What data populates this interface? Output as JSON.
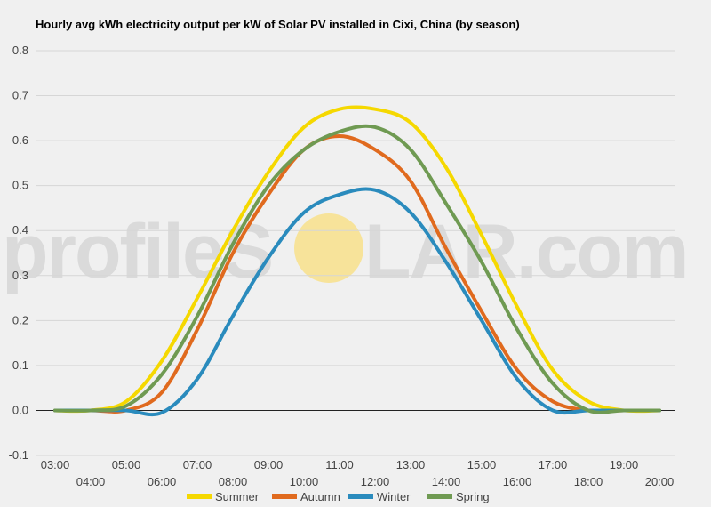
{
  "title": "Hourly avg kWh electricity output per kW of Solar PV installed in Cixi, China (by season)",
  "watermark": {
    "left": "profileS",
    "right": "LAR.com",
    "sun_color": "#f7e39a"
  },
  "chart_data": {
    "type": "line",
    "x": [
      "03:00",
      "04:00",
      "05:00",
      "06:00",
      "07:00",
      "08:00",
      "09:00",
      "10:00",
      "11:00",
      "12:00",
      "13:00",
      "14:00",
      "15:00",
      "16:00",
      "17:00",
      "18:00",
      "19:00",
      "20:00"
    ],
    "ylim": [
      -0.1,
      0.8
    ],
    "yticks": [
      -0.1,
      0.0,
      0.1,
      0.2,
      0.3,
      0.4,
      0.5,
      0.6,
      0.7,
      0.8
    ],
    "ytick_labels": [
      "-0.1",
      "0.0",
      "0.1",
      "0.2",
      "0.3",
      "0.4",
      "0.5",
      "0.6",
      "0.7",
      "0.8"
    ],
    "grid": true,
    "legend_position": "bottom",
    "series": [
      {
        "name": "Summer",
        "color": "#f5d800",
        "values": [
          0,
          0,
          0.02,
          0.11,
          0.25,
          0.4,
          0.53,
          0.63,
          0.67,
          0.67,
          0.64,
          0.54,
          0.39,
          0.23,
          0.09,
          0.02,
          0,
          0
        ]
      },
      {
        "name": "Autumn",
        "color": "#e06a1e",
        "values": [
          0,
          0,
          0,
          0.04,
          0.18,
          0.35,
          0.48,
          0.58,
          0.61,
          0.58,
          0.51,
          0.36,
          0.22,
          0.09,
          0.02,
          0,
          0,
          0
        ]
      },
      {
        "name": "Winter",
        "color": "#2a8bbd",
        "values": [
          0,
          0,
          0,
          -0.005,
          0.07,
          0.21,
          0.34,
          0.44,
          0.48,
          0.49,
          0.44,
          0.33,
          0.2,
          0.07,
          0,
          0,
          0,
          0
        ]
      },
      {
        "name": "Spring",
        "color": "#6f9a52",
        "values": [
          0,
          0,
          0.01,
          0.08,
          0.21,
          0.37,
          0.5,
          0.58,
          0.62,
          0.63,
          0.58,
          0.46,
          0.33,
          0.18,
          0.06,
          0,
          0,
          0
        ]
      }
    ]
  }
}
